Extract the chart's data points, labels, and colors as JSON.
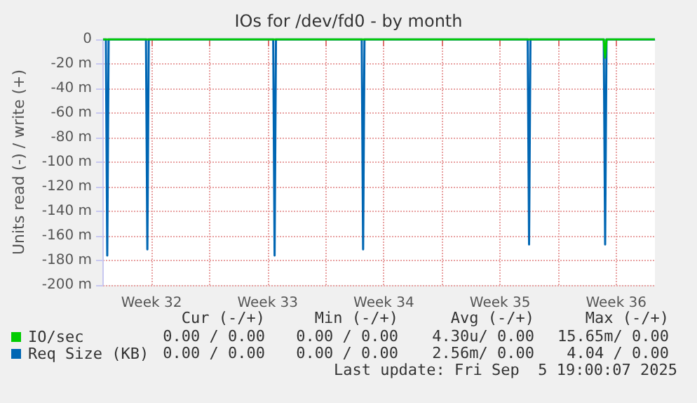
{
  "chart_data": {
    "type": "line",
    "title": "IOs for /dev/fd0 - by month",
    "ylabel": "Units read (-) / write (+)",
    "xlim": [
      "2025-08-04T14:00",
      "2025-09-06T20:00"
    ],
    "xticks": [
      {
        "value": "2025-08-07T12:00",
        "label": "Week 32"
      },
      {
        "value": "2025-08-11",
        "label": null
      },
      {
        "value": "2025-08-14T12:00",
        "label": "Week 33"
      },
      {
        "value": "2025-08-18",
        "label": null
      },
      {
        "value": "2025-08-21T12:00",
        "label": "Week 34"
      },
      {
        "value": "2025-08-25",
        "label": null
      },
      {
        "value": "2025-08-28T12:00",
        "label": "Week 35"
      },
      {
        "value": "2025-09-01",
        "label": null
      },
      {
        "value": "2025-09-04T12:00",
        "label": "Week 36"
      }
    ],
    "ylim": [
      -200,
      0
    ],
    "yticks": [
      {
        "value": -200,
        "label": "-200 m"
      },
      {
        "value": -180,
        "label": "-180 m"
      },
      {
        "value": -160,
        "label": "-160 m"
      },
      {
        "value": -140,
        "label": "-140 m"
      },
      {
        "value": -120,
        "label": "-120 m"
      },
      {
        "value": -100,
        "label": "-100 m"
      },
      {
        "value": -80,
        "label": "-80 m"
      },
      {
        "value": -60,
        "label": "-60 m"
      },
      {
        "value": -40,
        "label": "-40 m"
      },
      {
        "value": -20,
        "label": "-20 m"
      },
      {
        "value": 0,
        "label": "0"
      }
    ],
    "grid": true,
    "legend": "bottom left",
    "marker": "none",
    "line_style": "solid",
    "series": [
      {
        "name": "IO/sec",
        "color": "#00cc00",
        "x": [
          "2025-08-04T14:00",
          "2025-09-03T18:00",
          "2025-09-03T20:00",
          "2025-09-03T22:00",
          "2025-09-06T20:00"
        ],
        "values": [
          0,
          0,
          -15,
          0,
          0
        ]
      },
      {
        "name": "Req Size (KB)",
        "color": "#0066b3",
        "x": [
          "2025-08-04T14:00",
          "2025-08-04T18:00",
          "2025-08-04T20:00",
          "2025-08-04T22:00",
          "2025-08-07T04:00",
          "2025-08-07T06:00",
          "2025-08-07T08:00",
          "2025-08-14T20:00",
          "2025-08-14T22:00",
          "2025-08-15T00:00",
          "2025-08-20T04:00",
          "2025-08-20T06:00",
          "2025-08-20T08:00",
          "2025-08-30T04:00",
          "2025-08-30T06:00",
          "2025-08-30T08:00",
          "2025-09-03T18:00",
          "2025-09-03T20:00",
          "2025-09-03T22:00",
          "2025-09-06T20:00"
        ],
        "values": [
          0,
          0,
          -176,
          0,
          0,
          -171,
          0,
          0,
          -176,
          0,
          0,
          -171,
          0,
          0,
          -167,
          0,
          0,
          -167,
          0,
          0
        ]
      }
    ],
    "annotations": [
      "Cur (-/+)",
      "Min (-/+)",
      "Avg (-/+)",
      "Max (-/+)",
      "0.00 / 0.00",
      "0.00 / 0.00",
      "4.30u/ 0.00",
      "15.65m/ 0.00",
      "0.00 / 0.00",
      "0.00 / 0.00",
      "2.56m/ 0.00",
      "4.04 / 0.00",
      "Last update: Fri Sep  5 19:00:07 2025"
    ]
  }
}
